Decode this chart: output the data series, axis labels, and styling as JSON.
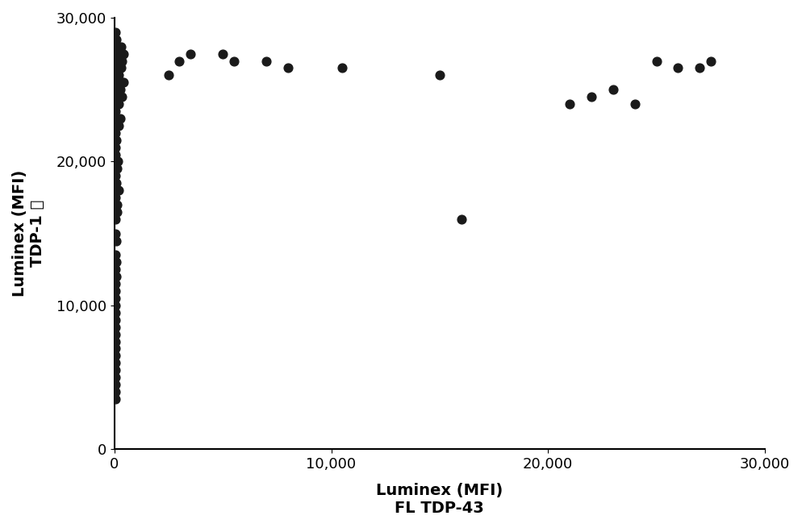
{
  "x": [
    50,
    80,
    100,
    120,
    150,
    200,
    250,
    300,
    350,
    400,
    50,
    100,
    150,
    200,
    250,
    300,
    400,
    50,
    100,
    200,
    350,
    50,
    100,
    150,
    250,
    350,
    50,
    100,
    200,
    50,
    80,
    150,
    50,
    100,
    50,
    80,
    120,
    200,
    50,
    100,
    50,
    100,
    50,
    80,
    50,
    80,
    50,
    80,
    50,
    50,
    50,
    50,
    50,
    50,
    50,
    50,
    50,
    50,
    50,
    50,
    50,
    50,
    50,
    50,
    50,
    3000,
    3500,
    2500,
    5000,
    5500,
    7000,
    8000,
    10500,
    15000,
    16000,
    21000,
    22000,
    23000,
    24000,
    25000,
    26000,
    27000,
    27500
  ],
  "y": [
    29000,
    28500,
    28000,
    27500,
    27000,
    28000,
    27500,
    28000,
    27000,
    27500,
    26500,
    26000,
    25500,
    26000,
    25000,
    26500,
    25500,
    24500,
    25000,
    24000,
    25500,
    23500,
    24000,
    24500,
    23000,
    24500,
    22000,
    23000,
    22500,
    21000,
    21500,
    20000,
    20500,
    20000,
    19000,
    18500,
    19500,
    18000,
    17500,
    17000,
    16000,
    16500,
    15000,
    14500,
    13500,
    13000,
    12500,
    12000,
    11500,
    11000,
    10500,
    10000,
    9500,
    9000,
    8500,
    8000,
    7500,
    7000,
    6500,
    6000,
    5500,
    5000,
    4500,
    4000,
    3500,
    27000,
    27500,
    26000,
    27500,
    27000,
    27000,
    26500,
    26500,
    26000,
    16000,
    24000,
    24500,
    25000,
    24000,
    27000,
    26500,
    26500,
    27000
  ],
  "dot_color": "#1a1a1a",
  "dot_size": 60,
  "xlim": [
    0,
    30000
  ],
  "ylim": [
    0,
    30000
  ],
  "xticks": [
    0,
    10000,
    20000,
    30000
  ],
  "yticks": [
    0,
    10000,
    20000,
    30000
  ],
  "xlabel_line1": "Luminex (MFI)",
  "xlabel_line2": "FL TDP-43",
  "ylabel_line1": "Luminex (MFI)",
  "ylabel_line2": "TDP-1 汐",
  "tick_fontsize": 13,
  "label_fontsize": 14,
  "background_color": "#ffffff",
  "spine_color": "#000000"
}
